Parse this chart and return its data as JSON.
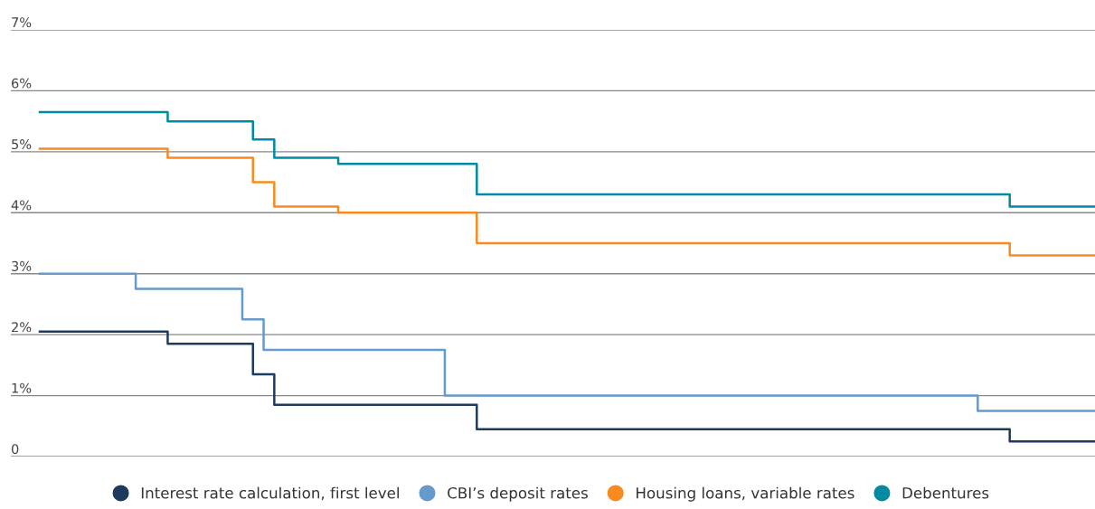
{
  "chart_data": {
    "type": "step",
    "categories": [
      null,
      null,
      null,
      null,
      null,
      null,
      null,
      null,
      null,
      null,
      null,
      null,
      null,
      null,
      null,
      null,
      null,
      null,
      null,
      null,
      null,
      null,
      null,
      null,
      null,
      null,
      null,
      null,
      null,
      null,
      null,
      null,
      null,
      null,
      null,
      null,
      null,
      null,
      null,
      null,
      null,
      null,
      null,
      null,
      null,
      null,
      null,
      null,
      null,
      null,
      null,
      null,
      null,
      null,
      null,
      null,
      null,
      null,
      null,
      null,
      null,
      null,
      null,
      null,
      null,
      null,
      null,
      null,
      null,
      null,
      null,
      null,
      null,
      null,
      null,
      null,
      null,
      null,
      null,
      null,
      null,
      null,
      null,
      null,
      null,
      null,
      null,
      null,
      null,
      null,
      null,
      null,
      null,
      null,
      null,
      null,
      null,
      null,
      null,
      null
    ],
    "ylim": [
      0,
      7
    ],
    "yticks": [
      {
        "value": 0,
        "label": "0"
      },
      {
        "value": 1,
        "label": "1%"
      },
      {
        "value": 2,
        "label": "2%"
      },
      {
        "value": 3,
        "label": "3%"
      },
      {
        "value": 4,
        "label": "4%"
      },
      {
        "value": 5,
        "label": "5%"
      },
      {
        "value": 6,
        "label": "6%"
      },
      {
        "value": 7,
        "label": "7%"
      }
    ],
    "grid": "y",
    "legend": "bottom",
    "tick_labels": "y",
    "series": [
      {
        "name": "Interest rate calculation, first level",
        "color": "#1f3a5f",
        "values": [
          2.05,
          2.05,
          2.05,
          2.05,
          2.05,
          2.05,
          2.05,
          2.05,
          2.05,
          2.05,
          2.05,
          2.05,
          1.85,
          1.85,
          1.85,
          1.85,
          1.85,
          1.85,
          1.85,
          1.85,
          1.35,
          1.35,
          0.85,
          0.85,
          0.85,
          0.85,
          0.85,
          0.85,
          0.85,
          0.85,
          0.85,
          0.85,
          0.85,
          0.85,
          0.85,
          0.85,
          0.85,
          0.85,
          0.85,
          0.85,
          0.85,
          0.45,
          0.45,
          0.45,
          0.45,
          0.45,
          0.45,
          0.45,
          0.45,
          0.45,
          0.45,
          0.45,
          0.45,
          0.45,
          0.45,
          0.45,
          0.45,
          0.45,
          0.45,
          0.45,
          0.45,
          0.45,
          0.45,
          0.45,
          0.45,
          0.45,
          0.45,
          0.45,
          0.45,
          0.45,
          0.45,
          0.45,
          0.45,
          0.45,
          0.45,
          0.45,
          0.45,
          0.45,
          0.45,
          0.45,
          0.45,
          0.45,
          0.45,
          0.45,
          0.45,
          0.45,
          0.45,
          0.45,
          0.45,
          0.45,
          0.45,
          0.25,
          0.25,
          0.25,
          0.25,
          0.25,
          0.25,
          0.25,
          0.25,
          0.25
        ]
      },
      {
        "name": "CBI’s deposit rates",
        "color": "#6699cc",
        "values": [
          3.0,
          3.0,
          3.0,
          3.0,
          3.0,
          3.0,
          3.0,
          3.0,
          3.0,
          2.75,
          2.75,
          2.75,
          2.75,
          2.75,
          2.75,
          2.75,
          2.75,
          2.75,
          2.75,
          2.25,
          2.25,
          1.75,
          1.75,
          1.75,
          1.75,
          1.75,
          1.75,
          1.75,
          1.75,
          1.75,
          1.75,
          1.75,
          1.75,
          1.75,
          1.75,
          1.75,
          1.75,
          1.75,
          1.0,
          1.0,
          1.0,
          1.0,
          1.0,
          1.0,
          1.0,
          1.0,
          1.0,
          1.0,
          1.0,
          1.0,
          1.0,
          1.0,
          1.0,
          1.0,
          1.0,
          1.0,
          1.0,
          1.0,
          1.0,
          1.0,
          1.0,
          1.0,
          1.0,
          1.0,
          1.0,
          1.0,
          1.0,
          1.0,
          1.0,
          1.0,
          1.0,
          1.0,
          1.0,
          1.0,
          1.0,
          1.0,
          1.0,
          1.0,
          1.0,
          1.0,
          1.0,
          1.0,
          1.0,
          1.0,
          1.0,
          1.0,
          1.0,
          1.0,
          0.75,
          0.75,
          0.75,
          0.75,
          0.75,
          0.75,
          0.75,
          0.75,
          0.75,
          0.75,
          0.75,
          0.75
        ]
      },
      {
        "name": "Housing loans, variable rates",
        "color": "#f98a1f",
        "values": [
          5.05,
          5.05,
          5.05,
          5.05,
          5.05,
          5.05,
          5.05,
          5.05,
          5.05,
          5.05,
          5.05,
          5.05,
          4.9,
          4.9,
          4.9,
          4.9,
          4.9,
          4.9,
          4.9,
          4.9,
          4.5,
          4.5,
          4.1,
          4.1,
          4.1,
          4.1,
          4.1,
          4.1,
          4.0,
          4.0,
          4.0,
          4.0,
          4.0,
          4.0,
          4.0,
          4.0,
          4.0,
          4.0,
          4.0,
          4.0,
          4.0,
          3.5,
          3.5,
          3.5,
          3.5,
          3.5,
          3.5,
          3.5,
          3.5,
          3.5,
          3.5,
          3.5,
          3.5,
          3.5,
          3.5,
          3.5,
          3.5,
          3.5,
          3.5,
          3.5,
          3.5,
          3.5,
          3.5,
          3.5,
          3.5,
          3.5,
          3.5,
          3.5,
          3.5,
          3.5,
          3.5,
          3.5,
          3.5,
          3.5,
          3.5,
          3.5,
          3.5,
          3.5,
          3.5,
          3.5,
          3.5,
          3.5,
          3.5,
          3.5,
          3.5,
          3.5,
          3.5,
          3.5,
          3.5,
          3.5,
          3.5,
          3.3,
          3.3,
          3.3,
          3.3,
          3.3,
          3.3,
          3.3,
          3.3,
          3.3
        ]
      },
      {
        "name": "Debentures",
        "color": "#008ba3",
        "values": [
          5.65,
          5.65,
          5.65,
          5.65,
          5.65,
          5.65,
          5.65,
          5.65,
          5.65,
          5.65,
          5.65,
          5.65,
          5.5,
          5.5,
          5.5,
          5.5,
          5.5,
          5.5,
          5.5,
          5.5,
          5.2,
          5.2,
          4.9,
          4.9,
          4.9,
          4.9,
          4.9,
          4.9,
          4.8,
          4.8,
          4.8,
          4.8,
          4.8,
          4.8,
          4.8,
          4.8,
          4.8,
          4.8,
          4.8,
          4.8,
          4.8,
          4.3,
          4.3,
          4.3,
          4.3,
          4.3,
          4.3,
          4.3,
          4.3,
          4.3,
          4.3,
          4.3,
          4.3,
          4.3,
          4.3,
          4.3,
          4.3,
          4.3,
          4.3,
          4.3,
          4.3,
          4.3,
          4.3,
          4.3,
          4.3,
          4.3,
          4.3,
          4.3,
          4.3,
          4.3,
          4.3,
          4.3,
          4.3,
          4.3,
          4.3,
          4.3,
          4.3,
          4.3,
          4.3,
          4.3,
          4.3,
          4.3,
          4.3,
          4.3,
          4.3,
          4.3,
          4.3,
          4.3,
          4.3,
          4.3,
          4.3,
          4.1,
          4.1,
          4.1,
          4.1,
          4.1,
          4.1,
          4.1,
          4.1,
          4.1
        ]
      }
    ]
  }
}
